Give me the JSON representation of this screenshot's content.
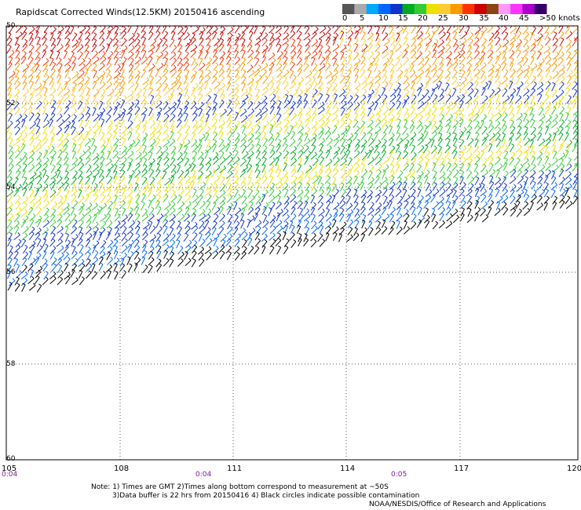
{
  "title": "Rapidscat Corrected Winds(12.5KM) 20150416 ascending",
  "legend": {
    "colors": [
      "#555555",
      "#aaaaaa",
      "#00aaff",
      "#0066ff",
      "#1133cc",
      "#00aa22",
      "#33cc33",
      "#f0e000",
      "#ffcc33",
      "#ff9900",
      "#ff3300",
      "#cc0000",
      "#8b4513",
      "#ff99ff",
      "#ff33ff",
      "#aa00cc",
      "#330066"
    ],
    "labels": [
      "0",
      "5",
      "10",
      "15",
      "20",
      "25",
      "30",
      "35",
      "40",
      "45",
      ">50 knots"
    ]
  },
  "axes": {
    "lat_labels": [
      "50",
      "52",
      "54",
      "56",
      "58",
      "60"
    ],
    "lon_labels": [
      "105",
      "108",
      "111",
      "114",
      "117",
      "120"
    ],
    "time_labels": [
      "0:04",
      "0:04",
      "0:05"
    ]
  },
  "notes": {
    "line1": "Note: 1) Times are GMT 2)Times along bottom correspond to measurement at ~50S",
    "line2": "3)Data buffer is 22 hrs from 20150416 4) Black circles indicate possible contamination",
    "line3": "NOAA/NESDIS/Office of Research and Applications"
  }
}
